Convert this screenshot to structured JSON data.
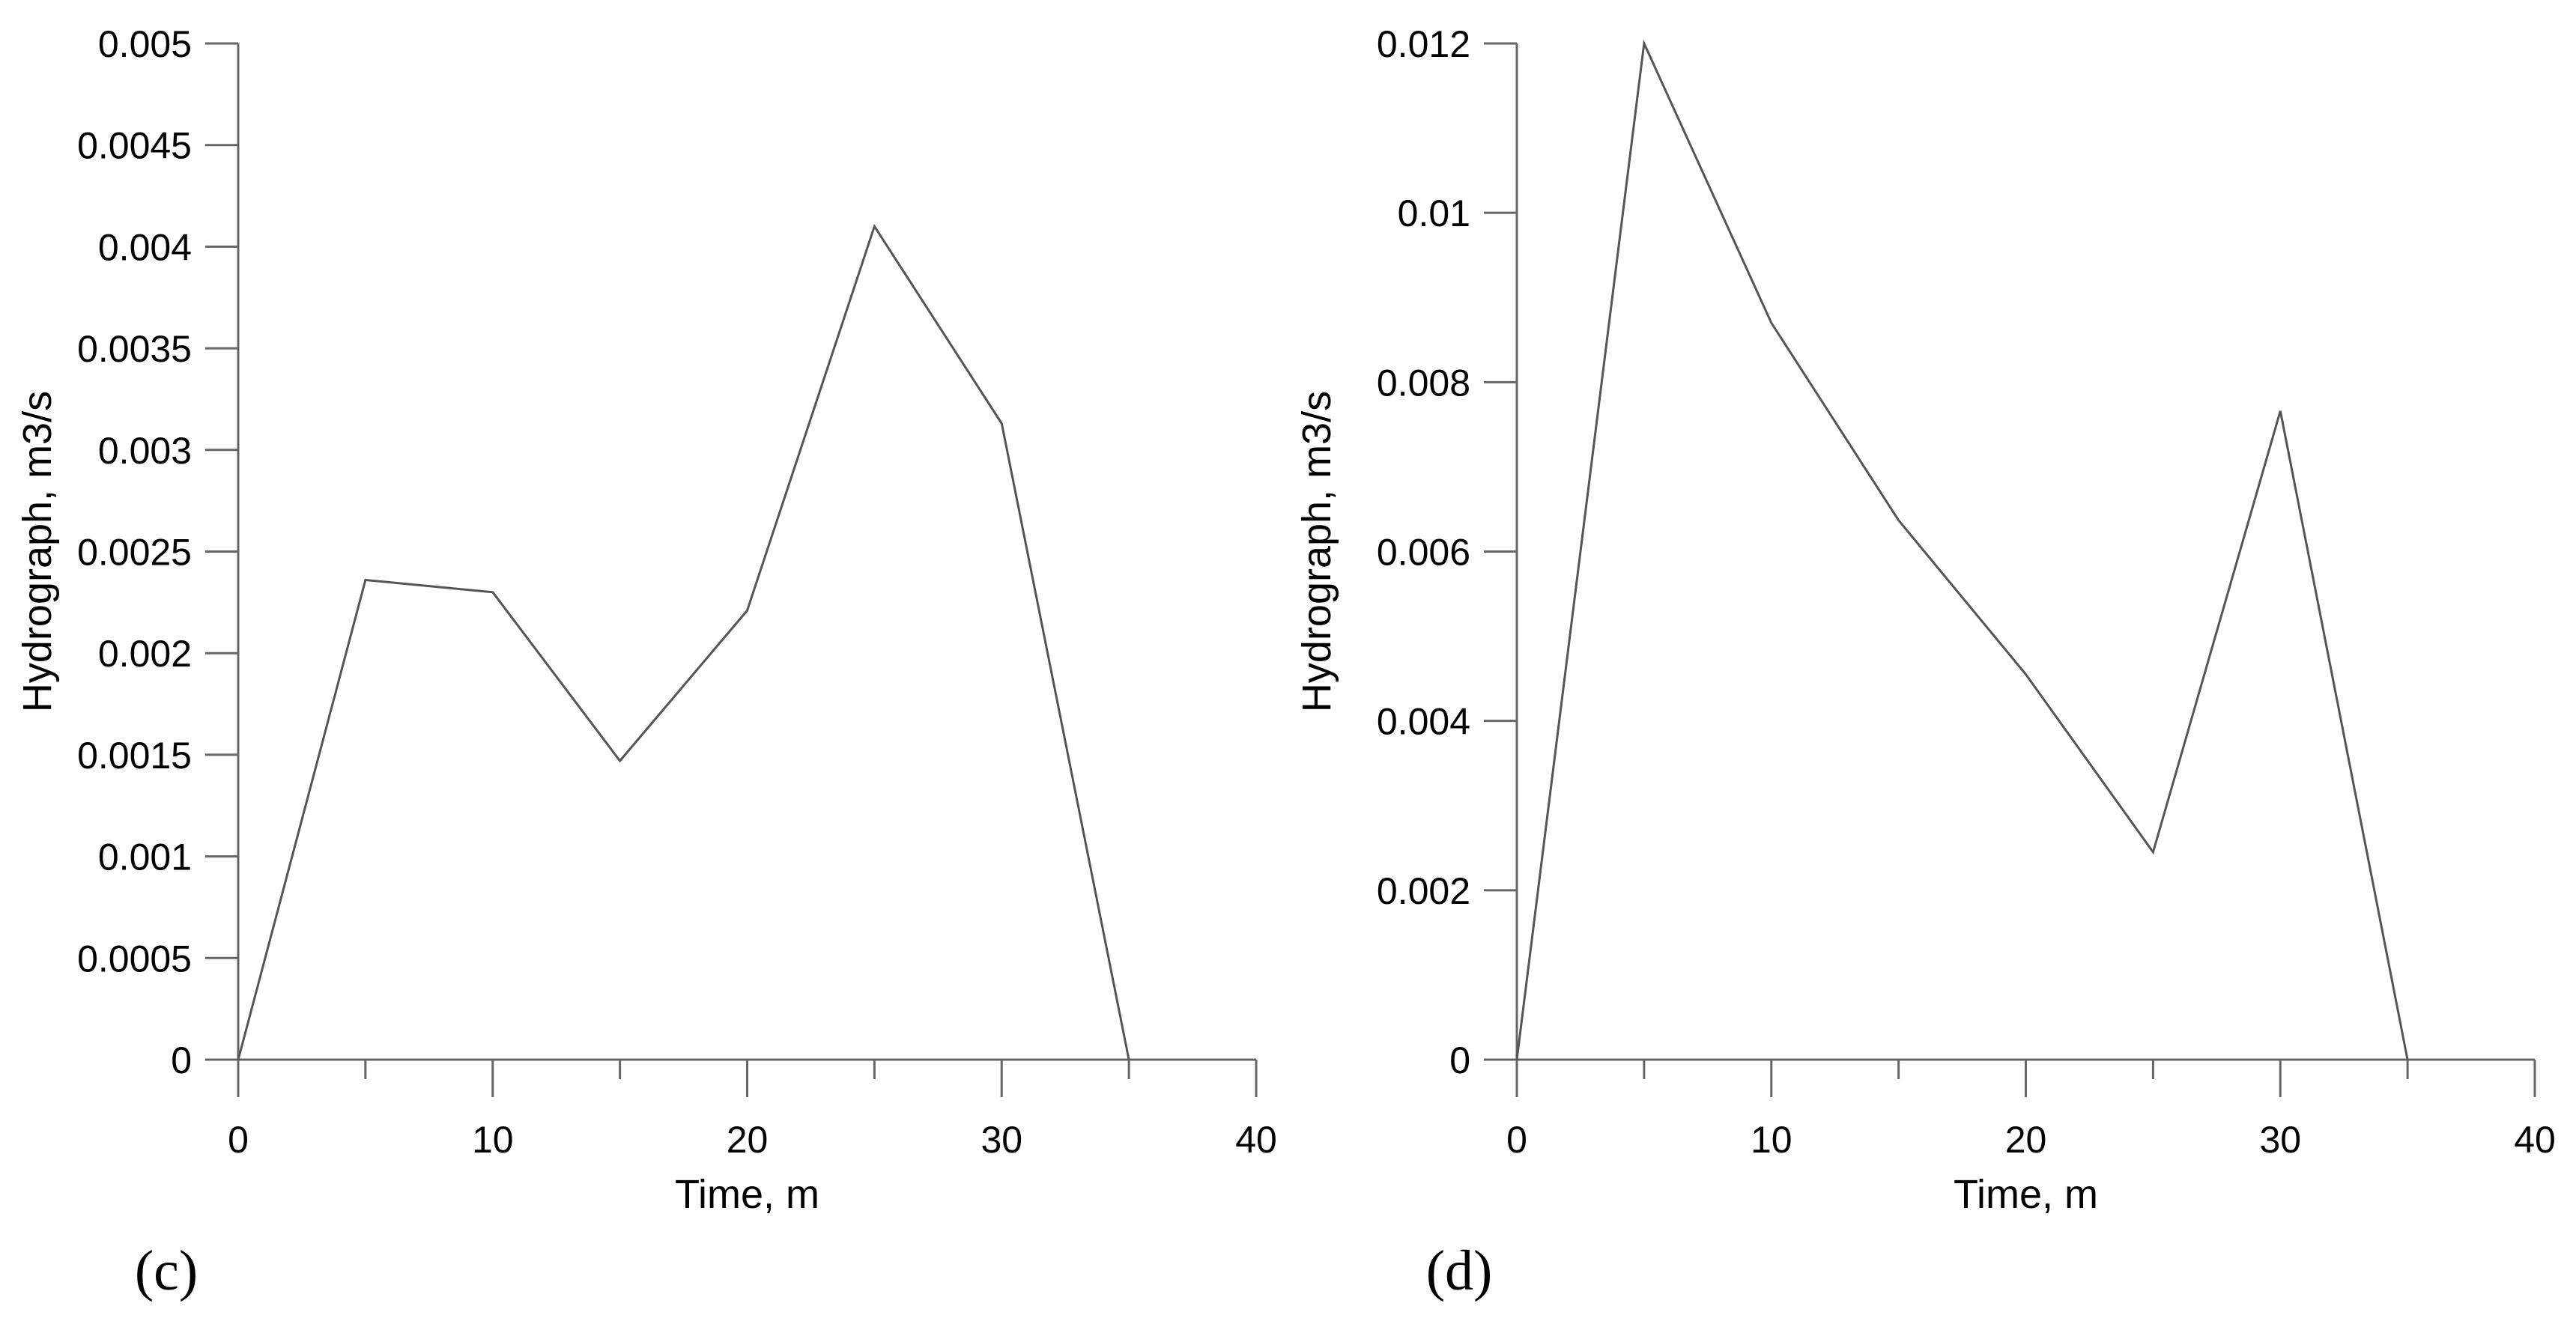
{
  "chart_data": [
    {
      "type": "line",
      "panel_label": "(c)",
      "xlabel": "Time, m",
      "ylabel": "Hydrograph, m3/s",
      "xlim": [
        0,
        40
      ],
      "ylim": [
        0,
        0.005
      ],
      "x_ticks": [
        0,
        10,
        20,
        30,
        40
      ],
      "x_minor_ticks": [
        5,
        15,
        25,
        35
      ],
      "x_tick_labels": [
        "0",
        "10",
        "20",
        "30",
        "40"
      ],
      "y_ticks": [
        0,
        0.0005,
        0.001,
        0.0015,
        0.002,
        0.0025,
        0.003,
        0.0035,
        0.004,
        0.0045,
        0.005
      ],
      "y_tick_labels": [
        "0",
        "0.0005",
        "0.001",
        "0.0015",
        "0.002",
        "0.0025",
        "0.003",
        "0.0035",
        "0.004",
        "0.0045",
        "0.005"
      ],
      "grid": false,
      "line_color": "#555555",
      "series": [
        {
          "name": "hydrograph",
          "x": [
            0,
            5,
            10,
            15,
            20,
            25,
            30,
            35
          ],
          "y": [
            0,
            0.00236,
            0.0023,
            0.00147,
            0.00221,
            0.0041,
            0.00313,
            0
          ]
        }
      ]
    },
    {
      "type": "line",
      "panel_label": "(d)",
      "xlabel": "Time, m",
      "ylabel": "Hydrograph, m3/s",
      "xlim": [
        0,
        40
      ],
      "ylim": [
        0,
        0.012
      ],
      "x_ticks": [
        0,
        10,
        20,
        30,
        40
      ],
      "x_minor_ticks": [
        5,
        15,
        25,
        35
      ],
      "x_tick_labels": [
        "0",
        "10",
        "20",
        "30",
        "40"
      ],
      "y_ticks": [
        0,
        0.002,
        0.004,
        0.006,
        0.008,
        0.01,
        0.012
      ],
      "y_tick_labels": [
        "0",
        "0.002",
        "0.004",
        "0.006",
        "0.008",
        "0.01",
        "0.012"
      ],
      "grid": false,
      "line_color": "#555555",
      "series": [
        {
          "name": "hydrograph",
          "x": [
            0,
            5,
            10,
            15,
            20,
            25,
            30,
            35
          ],
          "y": [
            0,
            0.012,
            0.0087,
            0.00637,
            0.00455,
            0.00245,
            0.00766,
            0
          ]
        }
      ]
    }
  ]
}
